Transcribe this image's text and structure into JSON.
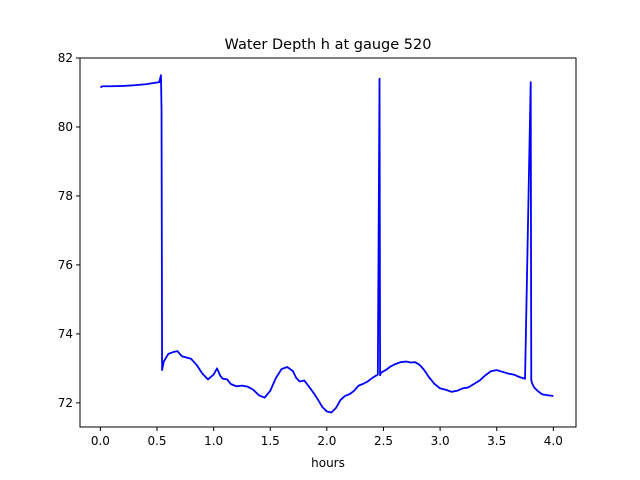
{
  "chart_data": {
    "type": "line",
    "title": "Water Depth h at gauge 520",
    "xlabel": "hours",
    "ylabel": "",
    "xlim": [
      -0.18,
      4.2
    ],
    "ylim": [
      71.3,
      82.0
    ],
    "xticks": [
      0.0,
      0.5,
      1.0,
      1.5,
      2.0,
      2.5,
      3.0,
      3.5,
      4.0
    ],
    "xtick_labels": [
      "0.0",
      "0.5",
      "1.0",
      "1.5",
      "2.0",
      "2.5",
      "3.0",
      "3.5",
      "4.0"
    ],
    "yticks": [
      72,
      74,
      76,
      78,
      80,
      82
    ],
    "ytick_labels": [
      "72",
      "74",
      "76",
      "78",
      "80",
      "82"
    ],
    "grid": false,
    "series": [
      {
        "color": "#0000ff",
        "x": [
          0.0,
          0.02,
          0.1,
          0.2,
          0.3,
          0.4,
          0.48,
          0.52,
          0.535,
          0.54,
          0.545,
          0.56,
          0.6,
          0.65,
          0.68,
          0.72,
          0.8,
          0.85,
          0.9,
          0.95,
          1.0,
          1.03,
          1.06,
          1.08,
          1.12,
          1.15,
          1.2,
          1.25,
          1.3,
          1.35,
          1.4,
          1.45,
          1.5,
          1.55,
          1.6,
          1.65,
          1.7,
          1.73,
          1.76,
          1.8,
          1.84,
          1.88,
          1.92,
          1.96,
          2.0,
          2.04,
          2.08,
          2.12,
          2.16,
          2.2,
          2.24,
          2.28,
          2.32,
          2.36,
          2.4,
          2.45,
          2.465,
          2.47,
          2.475,
          2.48,
          2.52,
          2.56,
          2.6,
          2.65,
          2.7,
          2.74,
          2.78,
          2.82,
          2.86,
          2.9,
          2.95,
          3.0,
          3.05,
          3.1,
          3.15,
          3.2,
          3.25,
          3.3,
          3.35,
          3.4,
          3.45,
          3.5,
          3.55,
          3.6,
          3.65,
          3.7,
          3.75,
          3.8,
          3.805,
          3.81,
          3.815,
          3.83,
          3.86,
          3.9,
          3.95,
          4.0
        ],
        "y": [
          81.15,
          81.18,
          81.18,
          81.19,
          81.21,
          81.24,
          81.28,
          81.3,
          81.5,
          80.5,
          72.95,
          73.2,
          73.42,
          73.48,
          73.5,
          73.35,
          73.28,
          73.1,
          72.85,
          72.68,
          72.82,
          73.0,
          72.78,
          72.7,
          72.68,
          72.55,
          72.48,
          72.5,
          72.47,
          72.38,
          72.22,
          72.15,
          72.35,
          72.72,
          72.98,
          73.04,
          72.92,
          72.72,
          72.62,
          72.65,
          72.48,
          72.3,
          72.1,
          71.88,
          71.75,
          71.72,
          71.85,
          72.08,
          72.2,
          72.25,
          72.35,
          72.5,
          72.55,
          72.62,
          72.72,
          72.82,
          81.4,
          72.8,
          72.85,
          72.88,
          72.95,
          73.05,
          73.12,
          73.18,
          73.2,
          73.17,
          73.18,
          73.1,
          72.95,
          72.75,
          72.55,
          72.42,
          72.38,
          72.32,
          72.35,
          72.42,
          72.45,
          72.55,
          72.65,
          72.8,
          72.92,
          72.95,
          72.9,
          72.85,
          72.82,
          72.75,
          72.7,
          81.3,
          72.65,
          72.6,
          72.55,
          72.45,
          72.35,
          72.25,
          72.22,
          72.2
        ]
      }
    ]
  }
}
